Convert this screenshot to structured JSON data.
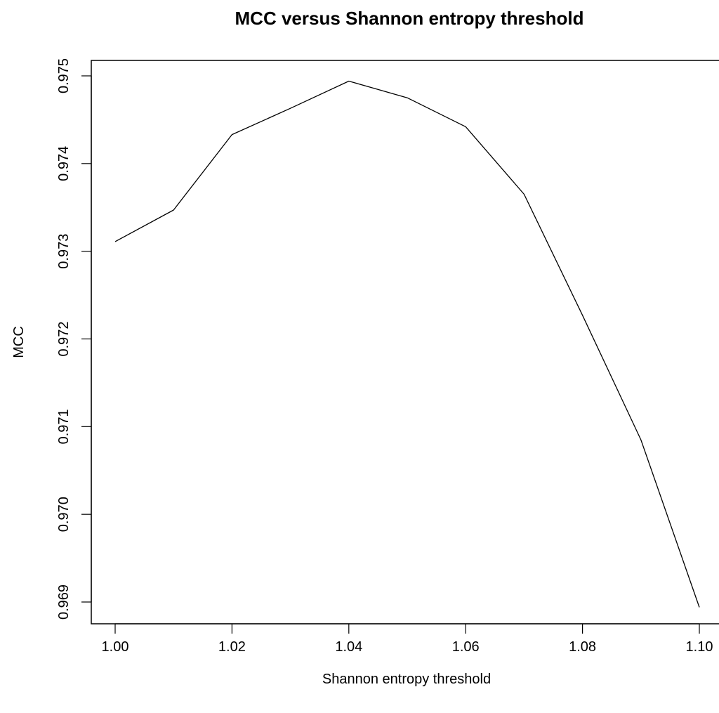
{
  "chart_data": {
    "type": "line",
    "title": "MCC versus Shannon entropy threshold",
    "xlabel": "Shannon entropy threshold",
    "ylabel": "MCC",
    "xlim": [
      1.0,
      1.1
    ],
    "ylim": [
      0.969,
      0.975
    ],
    "x_ticks": [
      "1.00",
      "1.02",
      "1.04",
      "1.06",
      "1.08",
      "1.10"
    ],
    "y_ticks": [
      "0.969",
      "0.970",
      "0.971",
      "0.972",
      "0.973",
      "0.974",
      "0.975"
    ],
    "grid": false,
    "legend": "none",
    "line_color": "#000000",
    "series": [
      {
        "x": [
          1.0,
          1.01,
          1.02,
          1.03,
          1.04,
          1.05,
          1.06,
          1.07,
          1.08,
          1.09,
          1.1
        ],
        "values": [
          0.97311,
          0.97347,
          0.97433,
          0.97463,
          0.97494,
          0.97475,
          0.97442,
          0.97365,
          0.97227,
          0.97085,
          0.96894
        ]
      }
    ]
  }
}
